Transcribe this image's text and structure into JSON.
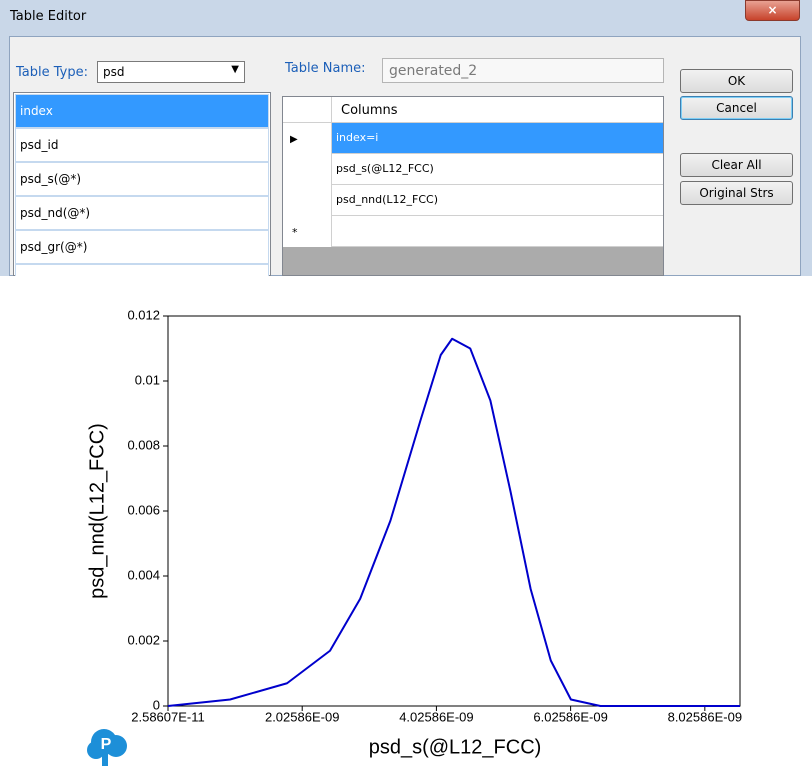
{
  "window": {
    "title": "Table Editor"
  },
  "form": {
    "table_type_label": "Table Type:",
    "table_type": "psd",
    "table_name_label": "Table Name:",
    "table_name": "generated_2"
  },
  "variable_list": [
    "index",
    "psd_id",
    "psd_s(@*)",
    "psd_nd(@*)",
    "psd_gr(@*)"
  ],
  "columns_grid": {
    "header": "Columns",
    "rows": [
      "index=i",
      "psd_s(@L12_FCC)",
      "psd_nnd(L12_FCC)"
    ],
    "new_row_marker": "*"
  },
  "buttons": [
    "OK",
    "Cancel",
    "Clear All",
    "Original Strs"
  ],
  "chart_data": {
    "type": "line",
    "x_label": "psd_s(@L12_FCC)",
    "y_label": "psd_nnd(L12_FCC)",
    "x": [
      2.58607e-11,
      9.51e-10,
      1.8e-09,
      2.44e-09,
      2.89e-09,
      3.34e-09,
      3.79e-09,
      4.09e-09,
      4.26e-09,
      4.53e-09,
      4.83e-09,
      5.13e-09,
      5.43e-09,
      5.73e-09,
      6.03e-09,
      6.47e-09,
      8.55e-09
    ],
    "values": [
      0,
      0.0002,
      0.0007,
      0.0017,
      0.0033,
      0.0057,
      0.0088,
      0.0108,
      0.0113,
      0.011,
      0.0094,
      0.0066,
      0.0036,
      0.0014,
      0.0002,
      0,
      0
    ],
    "color": "#0000cc",
    "xlim": [
      2.58607e-11,
      8.55e-09
    ],
    "ylim": [
      0,
      0.012
    ],
    "xticks": [
      {
        "value": 2.58607e-11,
        "label": "2.58607E-11"
      },
      {
        "value": 2.02586e-09,
        "label": "2.02586E-09"
      },
      {
        "value": 4.02586e-09,
        "label": "4.02586E-09"
      },
      {
        "value": 6.02586e-09,
        "label": "6.02586E-09"
      },
      {
        "value": 8.02586e-09,
        "label": "8.02586E-09"
      }
    ],
    "yticks": [
      0,
      0.002,
      0.004,
      0.006,
      0.008,
      0.01,
      0.012
    ]
  }
}
